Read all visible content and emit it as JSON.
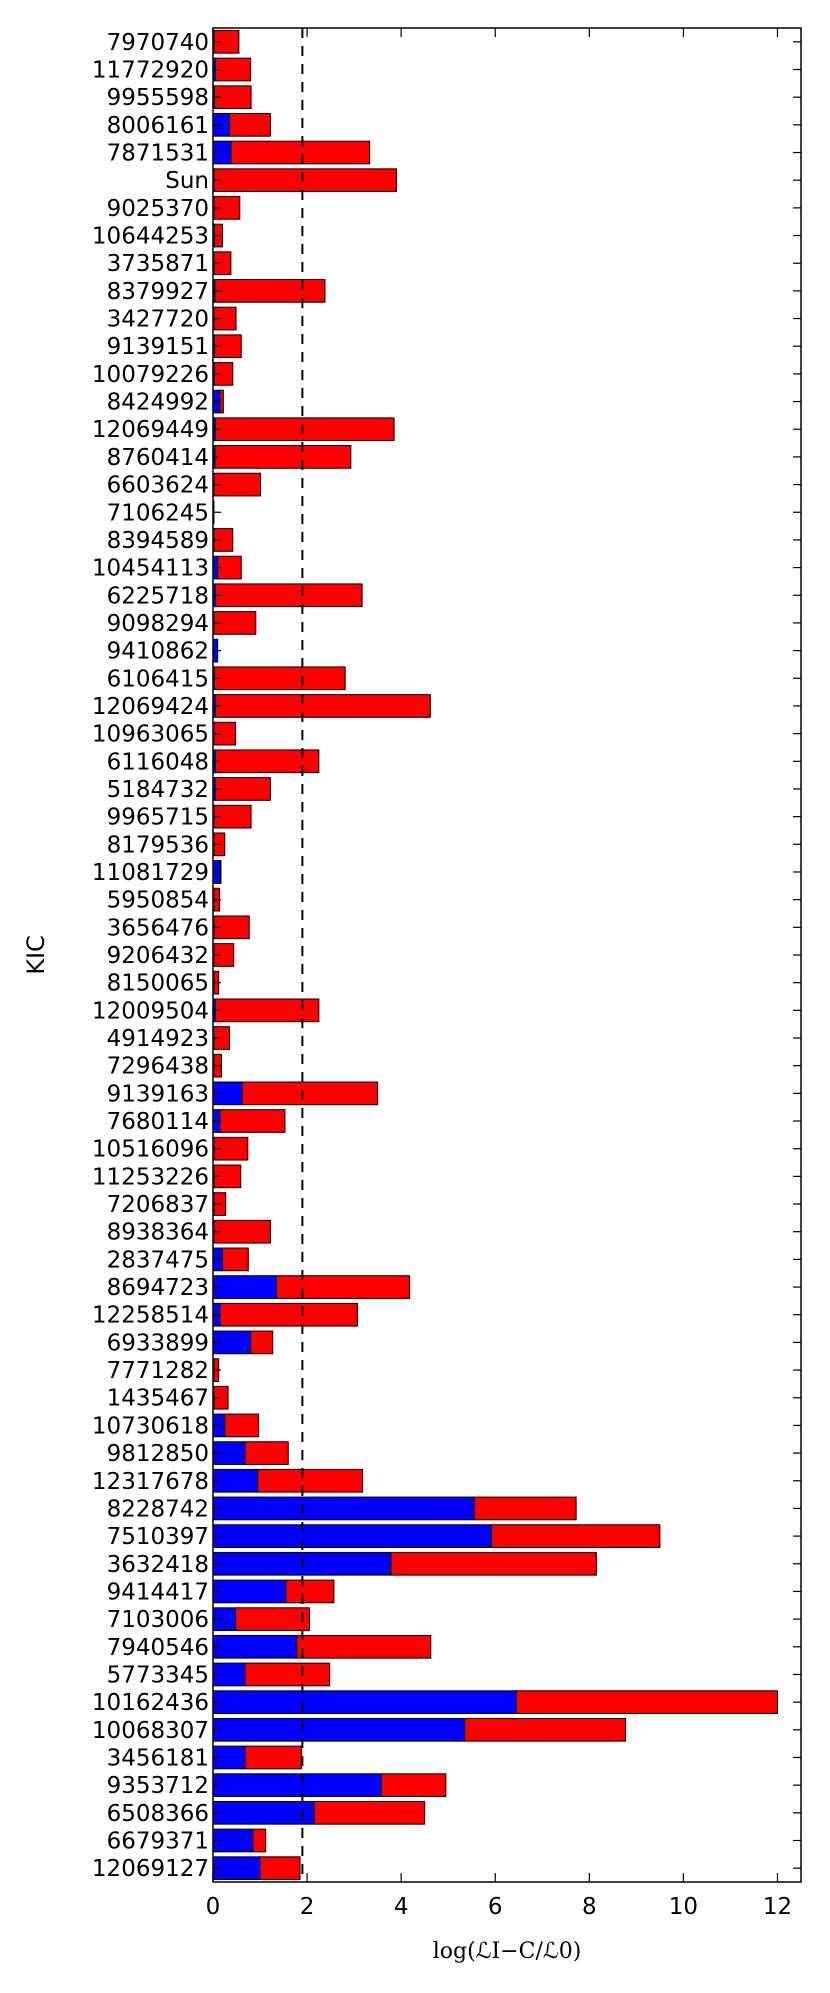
{
  "chart_data": {
    "type": "bar",
    "orientation": "horizontal",
    "stacked": true,
    "ylabel": "KIC",
    "xlabel": "log(ℒI−C/ℒ0)",
    "xlim": [
      0,
      12.5
    ],
    "xticks": [
      "0",
      "2",
      "4",
      "6",
      "8",
      "10",
      "12"
    ],
    "threshold_line": 1.9,
    "grid": false,
    "colors": {
      "series_1": "#0000ff",
      "series_2": "#ff0000",
      "threshold": "#000000"
    },
    "categories": [
      "7970740",
      "11772920",
      "9955598",
      "8006161",
      "7871531",
      "Sun",
      "9025370",
      "10644253",
      "3735871",
      "8379927",
      "3427720",
      "9139151",
      "10079226",
      "8424992",
      "12069449",
      "8760414",
      "6603624",
      "7106245",
      "8394589",
      "10454113",
      "6225718",
      "9098294",
      "9410862",
      "6106415",
      "12069424",
      "10963065",
      "6116048",
      "5184732",
      "9965715",
      "8179536",
      "11081729",
      "5950854",
      "3656476",
      "9206432",
      "8150065",
      "12009504",
      "4914923",
      "7296438",
      "9139163",
      "7680114",
      "10516096",
      "11253226",
      "7206837",
      "8938364",
      "2837475",
      "8694723",
      "12258514",
      "6933899",
      "7771282",
      "1435467",
      "10730618",
      "9812850",
      "12317678",
      "8228742",
      "7510397",
      "3632418",
      "9414417",
      "7103006",
      "7940546",
      "5773345",
      "10162436",
      "10068307",
      "3456181",
      "9353712",
      "6508366",
      "6679371",
      "12069127"
    ],
    "series": [
      {
        "color": "#0000ff",
        "values": [
          0.02,
          0.05,
          0.03,
          0.35,
          0.38,
          0.02,
          0.02,
          0.03,
          0.02,
          0.04,
          0.02,
          0.03,
          0.03,
          0.15,
          0.05,
          0.04,
          0.02,
          0.02,
          0.02,
          0.1,
          0.05,
          0.02,
          0.1,
          0.03,
          0.05,
          0.02,
          0.05,
          0.05,
          0.02,
          0.02,
          0.15,
          0.02,
          0.02,
          0.02,
          0.02,
          0.05,
          0.02,
          0.02,
          0.62,
          0.15,
          0.02,
          0.02,
          0.02,
          0.02,
          0.2,
          1.35,
          0.15,
          0.8,
          0.02,
          0.02,
          0.25,
          0.68,
          0.95,
          5.55,
          5.92,
          3.78,
          1.55,
          0.48,
          1.78,
          0.68,
          6.45,
          5.35,
          0.68,
          3.58,
          2.15,
          0.85,
          1.0
        ]
      },
      {
        "color": "#ff0000",
        "values": [
          0.53,
          0.75,
          0.78,
          0.87,
          2.95,
          3.88,
          0.55,
          0.17,
          0.36,
          2.34,
          0.47,
          0.57,
          0.39,
          0.07,
          3.8,
          2.89,
          0.99,
          0.0,
          0.4,
          0.5,
          3.12,
          0.89,
          0.0,
          2.78,
          4.57,
          0.46,
          2.2,
          1.17,
          0.79,
          0.23,
          0.02,
          0.12,
          0.75,
          0.42,
          0.1,
          2.2,
          0.33,
          0.16,
          2.88,
          1.38,
          0.72,
          0.57,
          0.25,
          1.2,
          0.55,
          2.83,
          2.92,
          0.47,
          0.1,
          0.3,
          0.72,
          0.92,
          2.23,
          2.17,
          3.58,
          4.37,
          1.02,
          1.57,
          2.85,
          1.8,
          5.55,
          3.42,
          1.2,
          1.37,
          2.35,
          0.27,
          0.85
        ]
      }
    ]
  }
}
